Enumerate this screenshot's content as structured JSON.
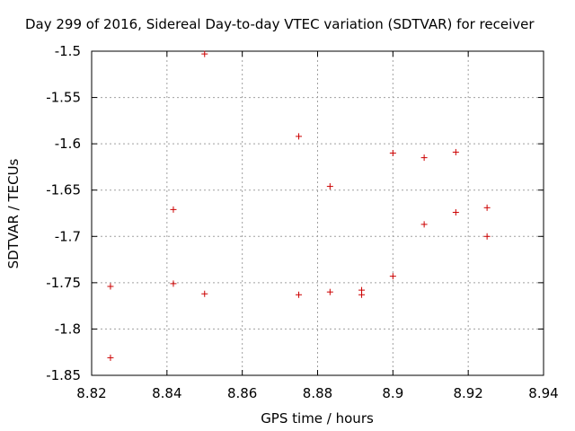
{
  "chart_data": {
    "type": "scatter",
    "title": "Day 299 of 2016, Sidereal Day-to-day VTEC variation (SDTVAR) for receiver",
    "xlabel": "GPS time / hours",
    "ylabel": "SDTVAR / TECUs",
    "xlim": [
      8.82,
      8.94
    ],
    "ylim": [
      -1.85,
      -1.5
    ],
    "grid": true,
    "marker_color": "#cc0000",
    "x_ticks": [
      "8.82",
      "8.84",
      "8.86",
      "8.88",
      "8.9",
      "8.92",
      "8.94"
    ],
    "x_tick_values": [
      8.82,
      8.84,
      8.86,
      8.88,
      8.9,
      8.92,
      8.94
    ],
    "y_ticks": [
      "-1.5",
      "-1.55",
      "-1.6",
      "-1.65",
      "-1.7",
      "-1.75",
      "-1.8",
      "-1.85"
    ],
    "y_tick_values": [
      -1.5,
      -1.55,
      -1.6,
      -1.65,
      -1.7,
      -1.75,
      -1.8,
      -1.85
    ],
    "series": [
      {
        "name": "SDTVAR",
        "points": [
          {
            "x": 8.825,
            "y": -1.754
          },
          {
            "x": 8.825,
            "y": -1.831
          },
          {
            "x": 8.8417,
            "y": -1.671
          },
          {
            "x": 8.8417,
            "y": -1.751
          },
          {
            "x": 8.85,
            "y": -1.503
          },
          {
            "x": 8.85,
            "y": -1.762
          },
          {
            "x": 8.875,
            "y": -1.592
          },
          {
            "x": 8.875,
            "y": -1.763
          },
          {
            "x": 8.8833,
            "y": -1.646
          },
          {
            "x": 8.8833,
            "y": -1.76
          },
          {
            "x": 8.8917,
            "y": -1.758
          },
          {
            "x": 8.8917,
            "y": -1.763
          },
          {
            "x": 8.9,
            "y": -1.61
          },
          {
            "x": 8.9,
            "y": -1.743
          },
          {
            "x": 8.9083,
            "y": -1.615
          },
          {
            "x": 8.9083,
            "y": -1.687
          },
          {
            "x": 8.9167,
            "y": -1.609
          },
          {
            "x": 8.9167,
            "y": -1.674
          },
          {
            "x": 8.925,
            "y": -1.669
          },
          {
            "x": 8.925,
            "y": -1.7
          }
        ]
      }
    ]
  }
}
